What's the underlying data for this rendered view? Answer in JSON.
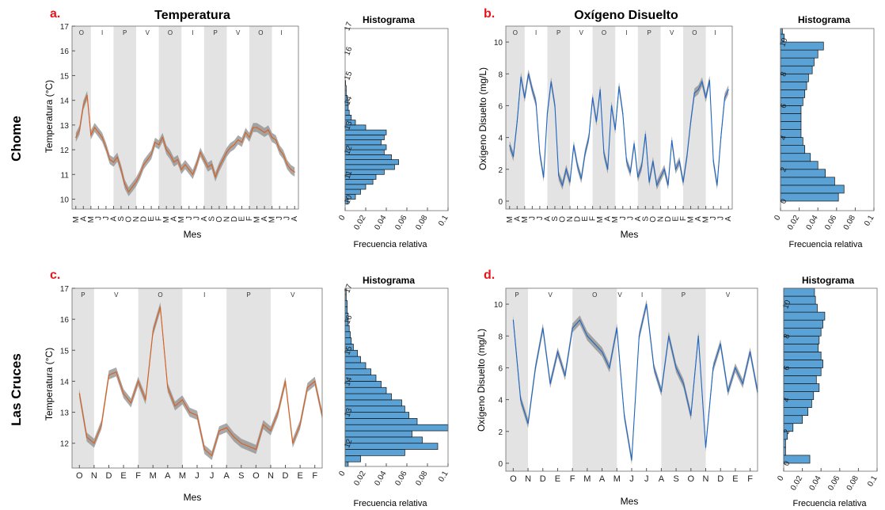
{
  "row_labels": [
    "Chome",
    "Las Cruces"
  ],
  "chart_data": [
    {
      "id": "a",
      "letter": "a.",
      "type": "line",
      "title": "Temperatura",
      "xlabel": "Mes",
      "ylabel": "Temperatura (°C)",
      "ylim": [
        9.6,
        17
      ],
      "yticks": [
        10,
        11,
        12,
        13,
        14,
        15,
        16,
        17
      ],
      "xtick_labels": [
        "M",
        "A",
        "M",
        "J",
        "J",
        "A",
        "S",
        "O",
        "N",
        "D",
        "E",
        "F",
        "M",
        "A",
        "M",
        "J",
        "J",
        "A",
        "S",
        "O",
        "N",
        "D",
        "E",
        "F",
        "M",
        "A",
        "M",
        "J",
        "J",
        "A"
      ],
      "seasons": [
        "O",
        "I",
        "P",
        "V",
        "O",
        "I",
        "P",
        "V",
        "O",
        "I"
      ],
      "season_shaded": [
        true,
        false,
        true,
        false,
        true,
        false,
        true,
        false,
        true,
        false
      ],
      "season_bounds": [
        0,
        2.5,
        5.5,
        8.5,
        11.5,
        14.5,
        17.5,
        20.5,
        23.5,
        26.5,
        29
      ],
      "series_colors": {
        "band": "#8c8c8c",
        "line": "#d95f1e"
      },
      "x": [
        0,
        0.5,
        1,
        1.5,
        2,
        2.5,
        3,
        3.5,
        4,
        4.5,
        5,
        5.5,
        6,
        6.5,
        7,
        7.5,
        8,
        8.5,
        9,
        9.5,
        10,
        10.5,
        11,
        11.5,
        12,
        12.5,
        13,
        13.5,
        14,
        14.5,
        15,
        15.5,
        16,
        16.5,
        17,
        17.5,
        18,
        18.5,
        19,
        19.5,
        20,
        20.5,
        21,
        21.5,
        22,
        22.5,
        23,
        23.5,
        24,
        24.5,
        25,
        25.5,
        26,
        26.5,
        27,
        27.5,
        28,
        28.5,
        29
      ],
      "y": [
        12.5,
        12.8,
        13.8,
        14.2,
        12.6,
        12.9,
        12.7,
        12.5,
        12.1,
        11.6,
        11.5,
        11.7,
        11.2,
        10.6,
        10.3,
        10.5,
        10.7,
        11.0,
        11.4,
        11.6,
        11.8,
        12.3,
        12.2,
        12.5,
        12.0,
        11.8,
        11.5,
        11.6,
        11.2,
        11.4,
        11.2,
        11.0,
        11.4,
        11.9,
        11.6,
        11.3,
        11.4,
        10.9,
        11.3,
        11.6,
        11.9,
        12.1,
        12.2,
        12.4,
        12.3,
        12.7,
        12.5,
        12.9,
        12.9,
        12.8,
        12.7,
        12.8,
        12.5,
        12.4,
        12.0,
        11.8,
        11.4,
        11.2,
        11.1
      ],
      "hist": {
        "title": "Histograma",
        "xlabel": "Frecuencia relativa",
        "xlim": [
          0,
          0.1
        ],
        "xticks": [
          0,
          0.02,
          0.04,
          0.06,
          0.08,
          0.1
        ],
        "bin_width": 0.2,
        "bin_start": 9.8,
        "values": [
          0.003,
          0.01,
          0.015,
          0.02,
          0.027,
          0.03,
          0.038,
          0.048,
          0.052,
          0.045,
          0.038,
          0.04,
          0.035,
          0.038,
          0.04,
          0.02,
          0.01,
          0.006,
          0.004,
          0.003,
          0.003,
          0.002,
          0.001,
          0.001,
          0.0005
        ]
      }
    },
    {
      "id": "b",
      "letter": "b.",
      "type": "line",
      "title": "Oxígeno Disuelto",
      "xlabel": "Mes",
      "ylabel": "Oxígeno Disuelto (mg/L)",
      "ylim": [
        -0.5,
        11
      ],
      "yticks": [
        0,
        2,
        4,
        6,
        8,
        10
      ],
      "xtick_labels": [
        "M",
        "A",
        "M",
        "J",
        "J",
        "A",
        "S",
        "O",
        "N",
        "D",
        "E",
        "F",
        "M",
        "A",
        "M",
        "J",
        "J",
        "A",
        "S",
        "O",
        "N",
        "D",
        "E",
        "F",
        "M",
        "A",
        "M",
        "J",
        "J",
        "A"
      ],
      "seasons": [
        "O",
        "I",
        "P",
        "V",
        "O",
        "I",
        "P",
        "V",
        "O",
        "I"
      ],
      "season_shaded": [
        true,
        false,
        true,
        false,
        true,
        false,
        true,
        false,
        true,
        false
      ],
      "season_bounds": [
        0,
        2.5,
        5.5,
        8.5,
        11.5,
        14.5,
        17.5,
        20.5,
        23.5,
        26.5,
        29
      ],
      "series_colors": {
        "band": "#8c8c8c",
        "line": "#1f66c4"
      },
      "x": [
        0,
        0.5,
        1,
        1.5,
        2,
        2.5,
        3,
        3.5,
        4,
        4.5,
        5,
        5.5,
        6,
        6.5,
        7,
        7.5,
        8,
        8.5,
        9,
        9.5,
        10,
        10.5,
        11,
        11.5,
        12,
        12.5,
        13,
        13.5,
        14,
        14.5,
        15,
        15.5,
        16,
        16.5,
        17,
        17.5,
        18,
        18.5,
        19,
        19.5,
        20,
        20.5,
        21,
        21.5,
        22,
        22.5,
        23,
        23.5,
        24,
        24.5,
        25,
        25.5,
        26,
        26.5,
        27,
        27.5,
        28,
        28.5,
        29
      ],
      "y": [
        3.5,
        2.8,
        5.0,
        7.8,
        6.5,
        8.0,
        7.0,
        6.2,
        3.0,
        1.5,
        5.5,
        7.5,
        6.0,
        1.6,
        1.0,
        2.0,
        1.2,
        3.5,
        2.2,
        1.4,
        3.0,
        4.0,
        6.5,
        5.0,
        7.0,
        3.0,
        2.0,
        6.0,
        4.5,
        7.2,
        5.5,
        2.5,
        1.8,
        3.6,
        1.5,
        2.2,
        4.2,
        1.2,
        2.5,
        1.0,
        1.5,
        2.0,
        1.0,
        3.8,
        2.0,
        2.5,
        1.2,
        2.8,
        5.0,
        6.8,
        7.0,
        7.5,
        6.5,
        7.6,
        2.5,
        1.0,
        4.0,
        6.5,
        7.0
      ],
      "hist": {
        "title": "Histograma",
        "xlabel": "Frecuencia relativa",
        "xlim": [
          0,
          0.1
        ],
        "xticks": [
          0,
          0.02,
          0.04,
          0.06,
          0.08,
          0.1
        ],
        "bin_width": 0.5,
        "bin_start": 0,
        "values": [
          0.062,
          0.068,
          0.058,
          0.048,
          0.04,
          0.032,
          0.026,
          0.024,
          0.022,
          0.022,
          0.022,
          0.022,
          0.024,
          0.026,
          0.028,
          0.03,
          0.034,
          0.036,
          0.04,
          0.046,
          0.004,
          0.002
        ]
      }
    },
    {
      "id": "c",
      "letter": "c.",
      "type": "line",
      "title": "",
      "xlabel": "Mes",
      "ylabel": "Temperatura (°C)",
      "ylim": [
        11.2,
        17
      ],
      "yticks": [
        12,
        13,
        14,
        15,
        16,
        17
      ],
      "xtick_labels": [
        "O",
        "N",
        "D",
        "E",
        "F",
        "M",
        "A",
        "M",
        "J",
        "J",
        "A",
        "S",
        "O",
        "N",
        "D",
        "E",
        "F"
      ],
      "seasons": [
        "P",
        "V",
        "O",
        "I",
        "P",
        "V"
      ],
      "season_shaded": [
        true,
        false,
        true,
        false,
        true,
        false
      ],
      "season_bounds": [
        0,
        1.5,
        4.5,
        7.5,
        10.5,
        13.5,
        16.5
      ],
      "series_colors": {
        "band": "#8c8c8c",
        "line": "#d95f1e"
      },
      "x": [
        0,
        0.5,
        1,
        1.5,
        2,
        2.5,
        3,
        3.5,
        4,
        4.5,
        5,
        5.5,
        6,
        6.5,
        7,
        7.5,
        8,
        8.5,
        9,
        9.5,
        10,
        10.5,
        11,
        11.5,
        12,
        12.5,
        13,
        13.5,
        14,
        14.5,
        15,
        15.5,
        16,
        16.5
      ],
      "y": [
        13.6,
        12.2,
        12.0,
        12.6,
        14.2,
        14.3,
        13.6,
        13.3,
        14.0,
        13.4,
        15.6,
        16.4,
        13.8,
        13.2,
        13.4,
        13.0,
        12.9,
        11.8,
        11.6,
        12.4,
        12.5,
        12.2,
        12.0,
        11.9,
        11.8,
        12.6,
        12.4,
        13.0,
        14.0,
        12.0,
        12.6,
        13.8,
        14.0,
        12.9
      ],
      "hist": {
        "title": "Histograma",
        "xlabel": "Frecuencia relativa",
        "xlim": [
          0,
          0.1
        ],
        "xticks": [
          0,
          0.02,
          0.04,
          0.06,
          0.08,
          0.1
        ],
        "bin_width": 0.2,
        "bin_start": 11.2,
        "values": [
          0.003,
          0.015,
          0.058,
          0.09,
          0.075,
          0.065,
          0.1,
          0.07,
          0.062,
          0.058,
          0.055,
          0.045,
          0.04,
          0.035,
          0.03,
          0.025,
          0.02,
          0.015,
          0.012,
          0.008,
          0.006,
          0.005,
          0.004,
          0.003,
          0.003,
          0.002,
          0.002,
          0.001,
          0.001
        ]
      }
    },
    {
      "id": "d",
      "letter": "d.",
      "type": "line",
      "title": "",
      "xlabel": "Mes",
      "ylabel": "Oxígeno Disuelto (mg/L)",
      "ylim": [
        -0.5,
        11
      ],
      "yticks": [
        0,
        2,
        4,
        6,
        8,
        10
      ],
      "xtick_labels": [
        "O",
        "N",
        "D",
        "E",
        "F",
        "M",
        "A",
        "M",
        "J",
        "J",
        "A",
        "S",
        "O",
        "N",
        "D",
        "E",
        "F"
      ],
      "seasons": [
        "P",
        "V",
        "O",
        "V",
        "I",
        "P",
        "V"
      ],
      "season_shaded": [
        true,
        false,
        true,
        false,
        false,
        true,
        false
      ],
      "season_bounds": [
        0,
        1.5,
        4.5,
        7.5,
        7.9,
        10.5,
        13.5,
        16.5
      ],
      "series_colors": {
        "band": "#8c8c8c",
        "line": "#1f66c4"
      },
      "x": [
        0,
        0.5,
        1,
        1.5,
        2,
        2.5,
        3,
        3.5,
        4,
        4.5,
        5,
        5.5,
        6,
        6.5,
        7,
        7.5,
        8,
        8.5,
        9,
        9.5,
        10,
        10.5,
        11,
        11.5,
        12,
        12.5,
        13,
        13.5,
        14,
        14.5,
        15,
        15.5,
        16,
        16.5
      ],
      "y": [
        9.0,
        4.0,
        2.5,
        6.0,
        8.5,
        5.0,
        7.0,
        5.5,
        8.5,
        9.0,
        8.0,
        7.5,
        7.0,
        6.0,
        8.5,
        3.0,
        0.2,
        8.0,
        10.0,
        6.0,
        4.5,
        8.0,
        6.0,
        5.0,
        3.0,
        8.0,
        1.0,
        6.0,
        7.5,
        4.5,
        6.0,
        5.0,
        7.0,
        4.5
      ],
      "hist": {
        "title": "Histograma",
        "xlabel": "Frecuencia relativa",
        "xlim": [
          0,
          0.1
        ],
        "xticks": [
          0,
          0.02,
          0.04,
          0.06,
          0.08,
          0.1
        ],
        "bin_width": 0.5,
        "bin_start": 0,
        "values": [
          0.028,
          0.002,
          0.002,
          0.004,
          0.01,
          0.02,
          0.026,
          0.03,
          0.032,
          0.038,
          0.035,
          0.04,
          0.042,
          0.04,
          0.037,
          0.038,
          0.04,
          0.042,
          0.044,
          0.036,
          0.034,
          0.033,
          0.032,
          0.03,
          0.028,
          0.018,
          0.012,
          0.008
        ]
      }
    }
  ]
}
